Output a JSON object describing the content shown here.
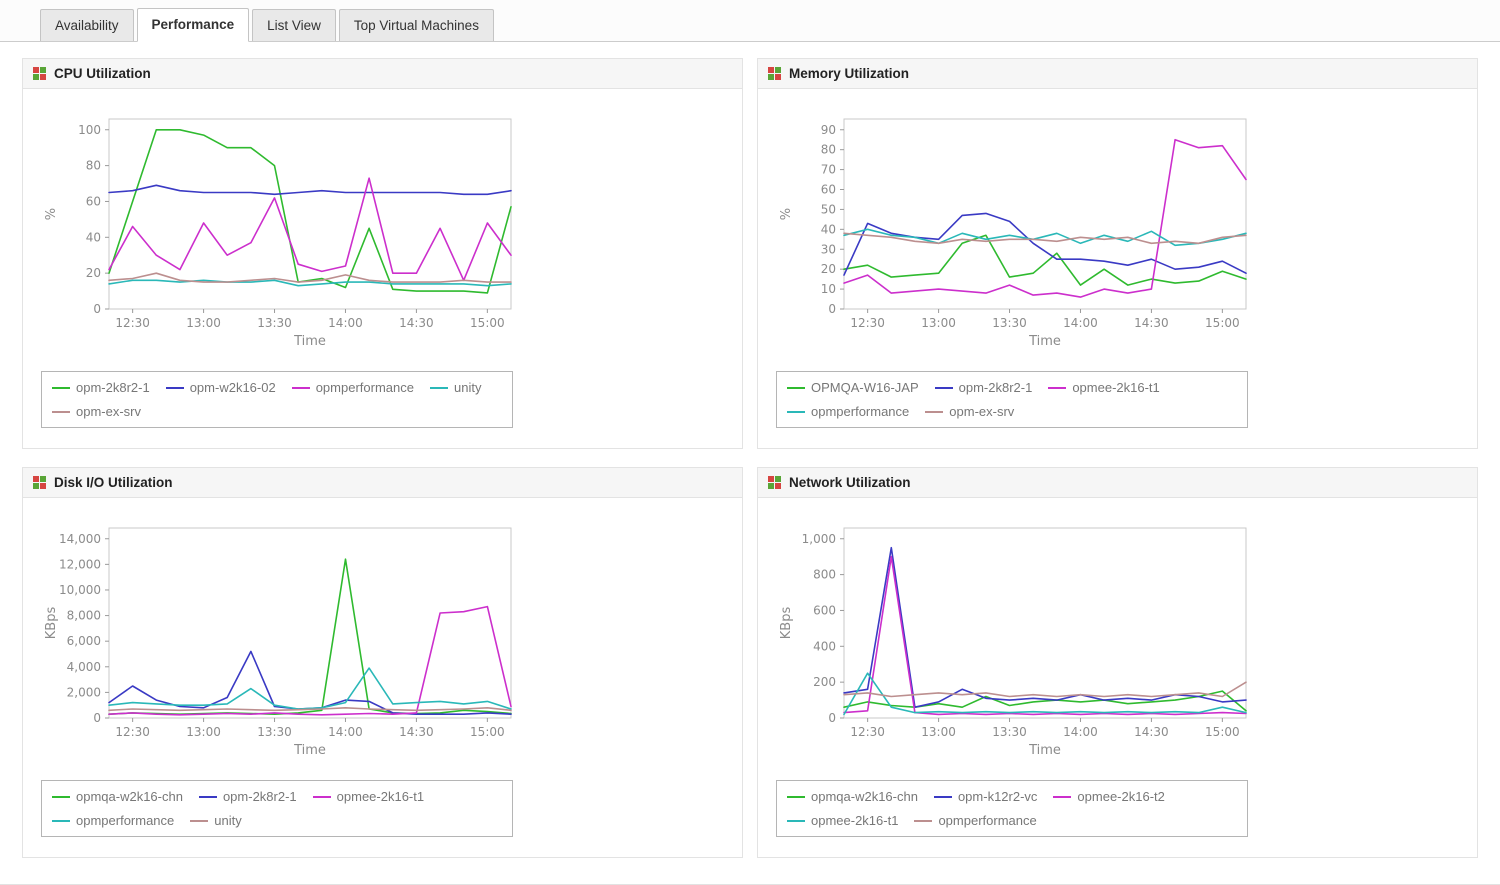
{
  "tabs": [
    {
      "label": "Availability",
      "active": false
    },
    {
      "label": "Performance",
      "active": true
    },
    {
      "label": "List View",
      "active": false
    },
    {
      "label": "Top Virtual Machines",
      "active": false
    }
  ],
  "colors": {
    "green": "#2fba2f",
    "blue": "#3a3ac4",
    "magenta": "#cc2fcc",
    "cyan": "#2ab8b8",
    "rosybrown": "#bc8f8f"
  },
  "chart_data": [
    {
      "id": "cpu-utilization",
      "title": "CPU Utilization",
      "type": "line",
      "xlabel": "Time",
      "ylabel": "%",
      "ylim": [
        0,
        100
      ],
      "yticks": [
        0,
        20,
        40,
        60,
        80,
        100
      ],
      "xticks": [
        "12:30",
        "13:00",
        "13:30",
        "14:00",
        "14:30",
        "15:00"
      ],
      "xtick_indices": [
        1,
        4,
        7,
        10,
        13,
        16
      ],
      "legend_position": "bottom",
      "grid": false,
      "series": [
        {
          "name": "opm-2k8r2-1",
          "color": "#2fba2f",
          "values": [
            20,
            60,
            100,
            100,
            97,
            90,
            90,
            80,
            15,
            17,
            12,
            45,
            11,
            10,
            10,
            10,
            9,
            57
          ]
        },
        {
          "name": "opm-w2k16-02",
          "color": "#3a3ac4",
          "values": [
            65,
            66,
            69,
            66,
            65,
            65,
            65,
            64,
            65,
            66,
            65,
            65,
            65,
            65,
            65,
            64,
            64,
            66
          ]
        },
        {
          "name": "opmperformance",
          "color": "#cc2fcc",
          "values": [
            22,
            46,
            30,
            22,
            48,
            30,
            37,
            62,
            25,
            21,
            24,
            73,
            20,
            20,
            45,
            16,
            48,
            30
          ]
        },
        {
          "name": "unity",
          "color": "#2ab8b8",
          "values": [
            14,
            16,
            16,
            15,
            16,
            15,
            15,
            16,
            13,
            14,
            15,
            15,
            14,
            14,
            14,
            14,
            13,
            14
          ]
        },
        {
          "name": "opm-ex-srv",
          "color": "#bc8f8f",
          "values": [
            16,
            17,
            20,
            16,
            15,
            15,
            16,
            17,
            15,
            16,
            19,
            16,
            15,
            15,
            15,
            16,
            15,
            15
          ]
        }
      ]
    },
    {
      "id": "memory-utilization",
      "title": "Memory Utilization",
      "type": "line",
      "xlabel": "Time",
      "ylabel": "%",
      "ylim": [
        0,
        90
      ],
      "yticks": [
        0,
        10,
        20,
        30,
        40,
        50,
        60,
        70,
        80,
        90
      ],
      "xticks": [
        "12:30",
        "13:00",
        "13:30",
        "14:00",
        "14:30",
        "15:00"
      ],
      "xtick_indices": [
        1,
        4,
        7,
        10,
        13,
        16
      ],
      "legend_position": "bottom",
      "grid": false,
      "series": [
        {
          "name": "OPMQA-W16-JAP",
          "color": "#2fba2f",
          "values": [
            20,
            22,
            16,
            17,
            18,
            33,
            37,
            16,
            18,
            28,
            12,
            20,
            12,
            15,
            13,
            14,
            19,
            15
          ]
        },
        {
          "name": "opm-2k8r2-1",
          "color": "#3a3ac4",
          "values": [
            17,
            43,
            38,
            36,
            35,
            47,
            48,
            44,
            33,
            25,
            25,
            24,
            22,
            25,
            20,
            21,
            24,
            18
          ]
        },
        {
          "name": "opmee-2k16-t1",
          "color": "#cc2fcc",
          "values": [
            13,
            17,
            8,
            9,
            10,
            9,
            8,
            12,
            7,
            8,
            6,
            10,
            8,
            10,
            85,
            81,
            82,
            65
          ]
        },
        {
          "name": "opmperformance",
          "color": "#2ab8b8",
          "values": [
            37,
            40,
            37,
            36,
            33,
            38,
            35,
            37,
            35,
            38,
            33,
            37,
            34,
            39,
            32,
            33,
            35,
            38
          ]
        },
        {
          "name": "opm-ex-srv",
          "color": "#bc8f8f",
          "values": [
            38,
            37,
            36,
            34,
            33,
            35,
            34,
            35,
            35,
            34,
            36,
            35,
            36,
            33,
            34,
            33,
            36,
            37
          ]
        }
      ]
    },
    {
      "id": "disk-io-utilization",
      "title": "Disk I/O Utilization",
      "type": "line",
      "xlabel": "Time",
      "ylabel": "KBps",
      "ylim": [
        0,
        14000
      ],
      "yticks": [
        0,
        2000,
        4000,
        6000,
        8000,
        10000,
        12000,
        14000
      ],
      "xticks": [
        "12:30",
        "13:00",
        "13:30",
        "14:00",
        "14:30",
        "15:00"
      ],
      "xtick_indices": [
        1,
        4,
        7,
        10,
        13,
        16
      ],
      "legend_position": "bottom",
      "grid": false,
      "series": [
        {
          "name": "opmqa-w2k16-chn",
          "color": "#2fba2f",
          "values": [
            300,
            400,
            350,
            300,
            350,
            400,
            350,
            300,
            400,
            600,
            12400,
            700,
            400,
            350,
            400,
            600,
            500,
            350
          ]
        },
        {
          "name": "opm-2k8r2-1",
          "color": "#3a3ac4",
          "values": [
            1200,
            2500,
            1400,
            900,
            800,
            1600,
            5200,
            900,
            700,
            800,
            1400,
            1300,
            400,
            300,
            300,
            300,
            400,
            300
          ]
        },
        {
          "name": "opmee-2k16-t1",
          "color": "#cc2fcc",
          "values": [
            300,
            400,
            300,
            250,
            300,
            350,
            300,
            400,
            300,
            250,
            300,
            350,
            300,
            400,
            8200,
            8300,
            8700,
            900
          ]
        },
        {
          "name": "opmperformance",
          "color": "#2ab8b8",
          "values": [
            1000,
            1200,
            1100,
            1000,
            1000,
            1100,
            2300,
            1000,
            700,
            800,
            1200,
            3900,
            1100,
            1200,
            1300,
            1100,
            1300,
            700
          ]
        },
        {
          "name": "unity",
          "color": "#bc8f8f",
          "values": [
            600,
            700,
            650,
            600,
            650,
            700,
            650,
            600,
            650,
            700,
            800,
            700,
            650,
            600,
            650,
            700,
            800,
            600
          ]
        }
      ]
    },
    {
      "id": "network-utilization",
      "title": "Network Utilization",
      "type": "line",
      "xlabel": "Time",
      "ylabel": "KBps",
      "ylim": [
        0,
        1000
      ],
      "yticks": [
        0,
        200,
        400,
        600,
        800,
        1000
      ],
      "xticks": [
        "12:30",
        "13:00",
        "13:30",
        "14:00",
        "14:30",
        "15:00"
      ],
      "xtick_indices": [
        1,
        4,
        7,
        10,
        13,
        16
      ],
      "legend_position": "bottom",
      "grid": false,
      "series": [
        {
          "name": "opmqa-w2k16-chn",
          "color": "#2fba2f",
          "values": [
            60,
            90,
            70,
            60,
            80,
            60,
            120,
            70,
            90,
            100,
            90,
            100,
            80,
            90,
            100,
            120,
            150,
            40
          ]
        },
        {
          "name": "opm-k12r2-vc",
          "color": "#3a3ac4",
          "values": [
            140,
            160,
            950,
            60,
            90,
            160,
            110,
            100,
            110,
            100,
            130,
            100,
            110,
            100,
            130,
            120,
            90,
            100
          ]
        },
        {
          "name": "opmee-2k16-t2",
          "color": "#cc2fcc",
          "values": [
            30,
            40,
            900,
            30,
            20,
            25,
            20,
            25,
            20,
            25,
            20,
            25,
            20,
            25,
            20,
            25,
            30,
            25
          ]
        },
        {
          "name": "opmee-2k16-t1",
          "color": "#2ab8b8",
          "values": [
            20,
            250,
            60,
            30,
            35,
            30,
            35,
            30,
            35,
            30,
            35,
            30,
            35,
            30,
            35,
            30,
            60,
            30
          ]
        },
        {
          "name": "opmperformance",
          "color": "#bc8f8f",
          "values": [
            130,
            140,
            120,
            130,
            140,
            130,
            140,
            120,
            130,
            120,
            130,
            120,
            130,
            120,
            130,
            140,
            120,
            200
          ]
        }
      ]
    }
  ]
}
